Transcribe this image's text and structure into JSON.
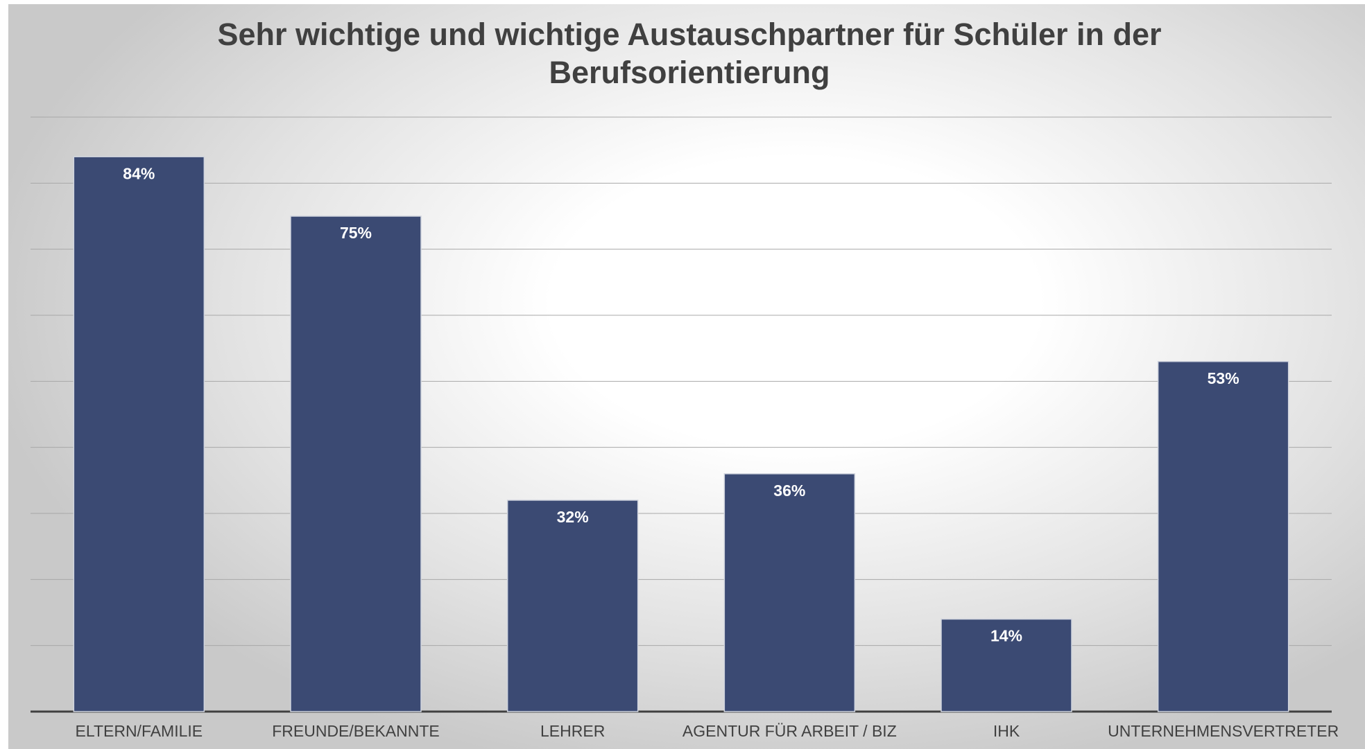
{
  "chart_data": {
    "type": "bar",
    "title": "Sehr wichtige und wichtige Austauschpartner für Schüler in der Berufsorientierung",
    "categories": [
      "ELTERN/FAMILIE",
      "FREUNDE/BEKANNTE",
      "LEHRER",
      "AGENTUR FÜR ARBEIT / BIZ",
      "IHK",
      "UNTERNEHMENSVERTRETER"
    ],
    "values": [
      84,
      75,
      32,
      36,
      14,
      53
    ],
    "value_labels": [
      "84%",
      "75%",
      "32%",
      "36%",
      "14%",
      "53%"
    ],
    "color": "#3b4a73",
    "ylim": [
      0,
      90
    ],
    "yticks": [
      0,
      10,
      20,
      30,
      40,
      50,
      60,
      70,
      80,
      90
    ],
    "grid": true
  }
}
